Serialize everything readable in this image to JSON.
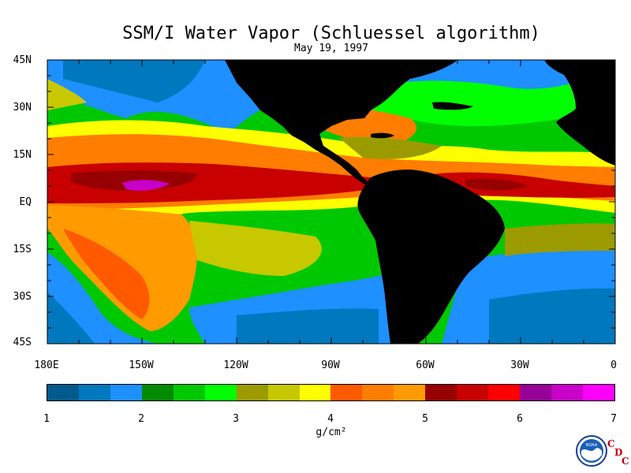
{
  "title": "SSM/I Water Vapor (Schluessel algorithm)",
  "subtitle": "May 19, 1997",
  "latitude_labels": [
    "45N",
    "30N",
    "15N",
    "EQ",
    "15S",
    "30S",
    "45S"
  ],
  "longitude_labels": [
    "180E",
    "150W",
    "120W",
    "90W",
    "60W",
    "30W",
    "0"
  ],
  "colorbar": {
    "tick_labels": [
      "1",
      "2",
      "3",
      "4",
      "5",
      "6",
      "7"
    ],
    "units": "g/cm²",
    "range": [
      1,
      7
    ],
    "colors": [
      "#005a8c",
      "#0078be",
      "#1e90ff",
      "#008c00",
      "#00c800",
      "#00ff00",
      "#9b9b00",
      "#c8c800",
      "#ffff00",
      "#ff5a00",
      "#ff7d00",
      "#ff9b00",
      "#960000",
      "#c80000",
      "#ff0000",
      "#960096",
      "#c800c8",
      "#ff00ff"
    ]
  },
  "logo": {
    "noaa_text": "NOAA",
    "cdc_letters": [
      "C",
      "D",
      "C"
    ]
  },
  "colors": {
    "land": "#000000",
    "background": "#ffffff"
  }
}
